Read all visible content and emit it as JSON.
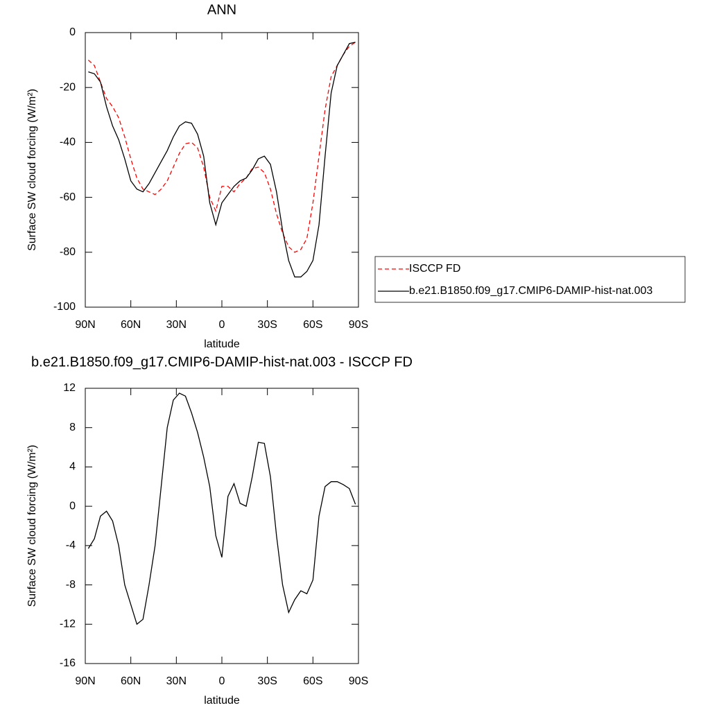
{
  "chart_data": [
    {
      "type": "line",
      "title": "ANN",
      "xlabel": "latitude",
      "ylabel": "Surface SW cloud forcing (W/m²)",
      "x": [
        88,
        84,
        80,
        76,
        72,
        68,
        64,
        60,
        56,
        52,
        48,
        44,
        40,
        36,
        32,
        28,
        24,
        20,
        16,
        12,
        8,
        4,
        0,
        -4,
        -8,
        -12,
        -16,
        -20,
        -24,
        -28,
        -32,
        -36,
        -40,
        -44,
        -48,
        -52,
        -56,
        -60,
        -64,
        -68,
        -72,
        -76,
        -80,
        -84,
        -88
      ],
      "xlim": [
        90,
        -90
      ],
      "xticks": [
        {
          "value": 90,
          "label": "90N"
        },
        {
          "value": 60,
          "label": "60N"
        },
        {
          "value": 30,
          "label": "30N"
        },
        0,
        {
          "value": -30,
          "label": "30S"
        },
        {
          "value": -60,
          "label": "60S"
        },
        {
          "value": -90,
          "label": "90S"
        }
      ],
      "ylim": [
        -100,
        0
      ],
      "yticks": [
        0,
        -20,
        -40,
        -60,
        -80,
        -100
      ],
      "legend": "right",
      "series": [
        {
          "name": "ISCCP FD",
          "color": "#ff0000",
          "dash": true,
          "values": [
            -10,
            -12,
            -18,
            -24,
            -27,
            -31,
            -38,
            -46,
            -53,
            -57,
            -58,
            -59,
            -57,
            -54,
            -49,
            -44,
            -40.5,
            -40,
            -42,
            -49,
            -60,
            -65,
            -56,
            -56,
            -58,
            -55,
            -53,
            -49.5,
            -49,
            -51,
            -57,
            -66,
            -73,
            -78,
            -80,
            -79,
            -75,
            -62,
            -45,
            -28,
            -16,
            -12,
            -8,
            -5,
            -3.5
          ]
        },
        {
          "name": "b.e21.B1850.f09_g17.CMIP6-DAMIP-hist-nat.003",
          "color": "#000000",
          "dash": false,
          "values": [
            -14.3,
            -15,
            -18,
            -27,
            -34,
            -39,
            -46,
            -54,
            -57,
            -58,
            -55,
            -51,
            -47,
            -43,
            -38,
            -34,
            -32.5,
            -33,
            -37,
            -45,
            -62,
            -70,
            -62,
            -59,
            -56,
            -54,
            -53,
            -50,
            -46,
            -45,
            -48,
            -58,
            -72,
            -83,
            -89,
            -89,
            -87,
            -83,
            -70,
            -45,
            -22,
            -12,
            -8,
            -4,
            -3.5
          ]
        }
      ]
    },
    {
      "type": "line",
      "title": "b.e21.B1850.f09_g17.CMIP6-DAMIP-hist-nat.003 - ISCCP FD",
      "xlabel": "latitude",
      "ylabel": "Surface SW cloud forcing (W/m²)",
      "x": [
        88,
        84,
        80,
        76,
        72,
        68,
        64,
        60,
        56,
        52,
        48,
        44,
        40,
        36,
        32,
        28,
        24,
        20,
        16,
        12,
        8,
        4,
        0,
        -4,
        -8,
        -12,
        -16,
        -20,
        -24,
        -28,
        -32,
        -36,
        -40,
        -44,
        -48,
        -52,
        -56,
        -60,
        -64,
        -68,
        -72,
        -76,
        -80,
        -84,
        -88
      ],
      "xlim": [
        90,
        -90
      ],
      "xticks": [
        {
          "value": 90,
          "label": "90N"
        },
        {
          "value": 60,
          "label": "60N"
        },
        {
          "value": 30,
          "label": "30N"
        },
        0,
        {
          "value": -30,
          "label": "30S"
        },
        {
          "value": -60,
          "label": "60S"
        },
        {
          "value": -90,
          "label": "90S"
        }
      ],
      "ylim": [
        -16,
        12
      ],
      "yticks": [
        12,
        8,
        4,
        0,
        -4,
        -8,
        -12,
        -16
      ],
      "series": [
        {
          "color": "#000000",
          "dash": false,
          "values": [
            -4.3,
            -3.3,
            -1,
            -0.5,
            -1.5,
            -4,
            -8,
            -10,
            -12,
            -11.5,
            -8,
            -4,
            2,
            8,
            10.8,
            11.5,
            11.2,
            9.5,
            7.5,
            5,
            2,
            -3,
            -5.2,
            1,
            2.3,
            0.3,
            0,
            3,
            6.5,
            6.4,
            3,
            -3,
            -8,
            -10.8,
            -9.5,
            -8.6,
            -8.9,
            -7.5,
            -1,
            2,
            2.5,
            2.5,
            2.2,
            1.8,
            0.2
          ]
        }
      ]
    }
  ]
}
